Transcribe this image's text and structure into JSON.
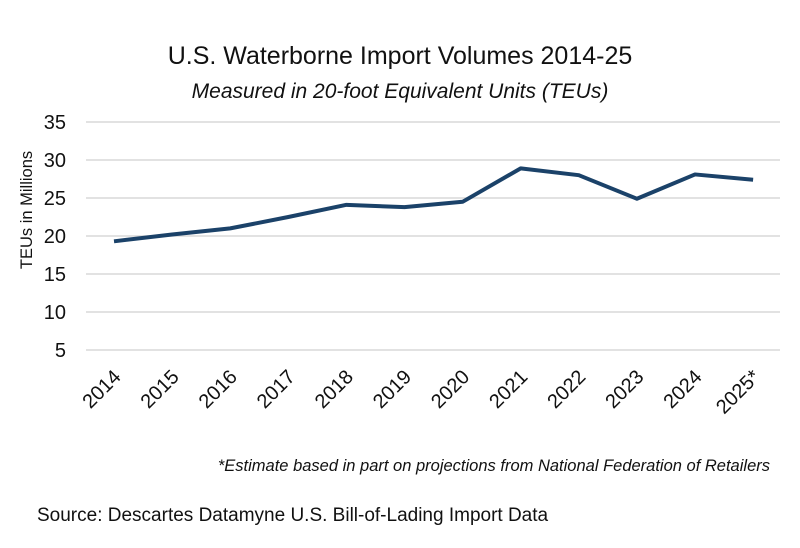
{
  "chart_data": {
    "type": "line",
    "title": "U.S. Waterborne Import Volumes 2014-25",
    "subtitle": "Measured in 20-foot Equivalent Units (TEUs)",
    "xlabel": "",
    "ylabel": "TEUs in Millions",
    "categories": [
      "2014",
      "2015",
      "2016",
      "2017",
      "2018",
      "2019",
      "2020",
      "2021",
      "2022",
      "2023",
      "2024",
      "2025*"
    ],
    "values": [
      19.3,
      20.2,
      21.0,
      22.5,
      24.1,
      23.8,
      24.5,
      28.9,
      28.0,
      24.9,
      28.1,
      27.4
    ],
    "ylim": [
      5,
      35
    ],
    "yticks": [
      5,
      10,
      15,
      20,
      25,
      30,
      35
    ],
    "grid": true,
    "legend": "none",
    "line_color": "#1b4269",
    "note": "*Estimate based in part on projections from National Federation of Retailers",
    "source": "Source: Descartes Datamyne U.S. Bill-of-Lading Import Data"
  }
}
